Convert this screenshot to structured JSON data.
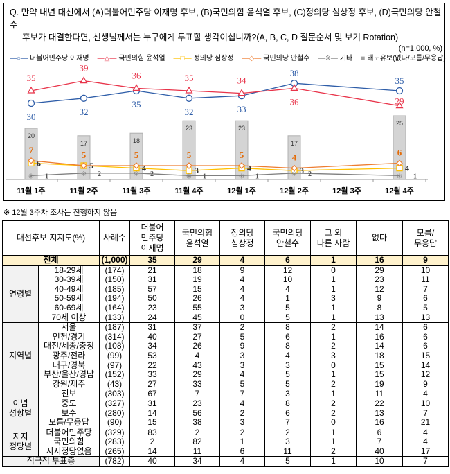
{
  "question": {
    "line1": "Q. 만약 내년 대선에서 (A)더불어민주당 이재명 후보, (B)국민의힘 윤석열 후보, (C)정의당 심상정 후보, (D)국민의당 안철수",
    "line2": "후보가 대결한다면, 선생님께서는 누구에게 투표할 생각이십니까?(A, B, C, D 질문순서 및 보기 Rotation)",
    "sample": "(n=1,000, %)"
  },
  "note": "※ 12월 3주차 조사는 진행하지 않음",
  "chart_data": {
    "type": "line",
    "x": [
      "11월 1주",
      "11월 2주",
      "11월 3주",
      "11월 4주",
      "12월 1주",
      "12월 2주",
      "12월 3주",
      "12월 4주"
    ],
    "series": [
      {
        "name": "더불어민주당 이재명",
        "color": "#2e5da8",
        "marker": "circle",
        "values": [
          30,
          32,
          35,
          32,
          33,
          38,
          null,
          35
        ]
      },
      {
        "name": "국민의힘 윤석열",
        "color": "#e8344a",
        "marker": "triangle",
        "values": [
          35,
          39,
          36,
          35,
          34,
          36,
          null,
          29
        ]
      },
      {
        "name": "정의당 심상정",
        "color": "#ffc000",
        "marker": "square",
        "values": [
          6,
          5,
          4,
          3,
          4,
          3,
          null,
          4
        ]
      },
      {
        "name": "국민의당 안철수",
        "color": "#ed7d31",
        "marker": "diamond",
        "values": [
          7,
          5,
          5,
          5,
          5,
          4,
          null,
          6
        ]
      },
      {
        "name": "기타",
        "color": "#7f7f7f",
        "marker": "x",
        "values": [
          1,
          2,
          2,
          1,
          1,
          2,
          null,
          1
        ]
      },
      {
        "name": "태도유보(없다/모름/무응답)",
        "color": "#d0d0d0",
        "type": "bar",
        "values": [
          20,
          17,
          18,
          23,
          23,
          17,
          null,
          25
        ]
      }
    ],
    "ylim": [
      0,
      45
    ]
  },
  "table": {
    "headers": [
      "대선후보 지지도(%)",
      "사례수",
      "더불어\n민주당\n이재명",
      "국민의힘\n윤석열",
      "정의당\n심상정",
      "국민의당\n안철수",
      "그 외\n다른 사람",
      "없다",
      "모름/\n무응답"
    ],
    "total": {
      "label": "전체",
      "n": "(1,000)",
      "values": [
        "35",
        "29",
        "4",
        "6",
        "1",
        "16",
        "9"
      ]
    },
    "groups": [
      {
        "name": "연령별",
        "rows": [
          [
            "18-29세",
            "(174)",
            "21",
            "18",
            "9",
            "12",
            "0",
            "29",
            "10"
          ],
          [
            "30-39세",
            "(150)",
            "31",
            "19",
            "4",
            "10",
            "1",
            "23",
            "11"
          ],
          [
            "40-49세",
            "(185)",
            "57",
            "15",
            "4",
            "4",
            "1",
            "12",
            "7"
          ],
          [
            "50-59세",
            "(194)",
            "50",
            "26",
            "4",
            "1",
            "3",
            "9",
            "6"
          ],
          [
            "60-69세",
            "(164)",
            "23",
            "55",
            "3",
            "5",
            "1",
            "8",
            "5"
          ],
          [
            "70세 이상",
            "(133)",
            "24",
            "45",
            "0",
            "5",
            "1",
            "13",
            "13"
          ]
        ]
      },
      {
        "name": "지역별",
        "rows": [
          [
            "서울",
            "(187)",
            "31",
            "37",
            "2",
            "8",
            "2",
            "14",
            "6"
          ],
          [
            "인천/경기",
            "(314)",
            "40",
            "27",
            "5",
            "6",
            "1",
            "16",
            "6"
          ],
          [
            "대전/세종/충청",
            "(108)",
            "34",
            "26",
            "9",
            "8",
            "2",
            "14",
            "6"
          ],
          [
            "광주/전라",
            "(99)",
            "53",
            "4",
            "3",
            "4",
            "3",
            "18",
            "15"
          ],
          [
            "대구/경북",
            "(97)",
            "22",
            "43",
            "3",
            "3",
            "0",
            "15",
            "14"
          ],
          [
            "부산/울산/경남",
            "(152)",
            "33",
            "29",
            "4",
            "5",
            "1",
            "15",
            "12"
          ],
          [
            "강원/제주",
            "(43)",
            "27",
            "33",
            "5",
            "5",
            "2",
            "19",
            "9"
          ]
        ]
      },
      {
        "name": "이념\n성향별",
        "rows": [
          [
            "진보",
            "(303)",
            "67",
            "7",
            "7",
            "3",
            "1",
            "11",
            "4"
          ],
          [
            "중도",
            "(327)",
            "31",
            "23",
            "4",
            "8",
            "2",
            "22",
            "10"
          ],
          [
            "보수",
            "(280)",
            "14",
            "56",
            "2",
            "6",
            "2",
            "13",
            "7"
          ],
          [
            "모름/무응답",
            "(90)",
            "15",
            "38",
            "3",
            "7",
            "0",
            "16",
            "21"
          ]
        ]
      },
      {
        "name": "지지\n정당별",
        "rows": [
          [
            "더불어민주당",
            "(329)",
            "83",
            "2",
            "2",
            "2",
            "1",
            "6",
            "4"
          ],
          [
            "국민의힘",
            "(283)",
            "2",
            "82",
            "1",
            "3",
            "1",
            "7",
            "4"
          ],
          [
            "지지정당없음",
            "(265)",
            "14",
            "11",
            "6",
            "11",
            "2",
            "40",
            "17"
          ]
        ]
      }
    ],
    "footer": {
      "label": "적극적 투표층",
      "n": "(782)",
      "values": [
        "40",
        "34",
        "4",
        "5",
        "1",
        "10",
        "7"
      ]
    }
  }
}
